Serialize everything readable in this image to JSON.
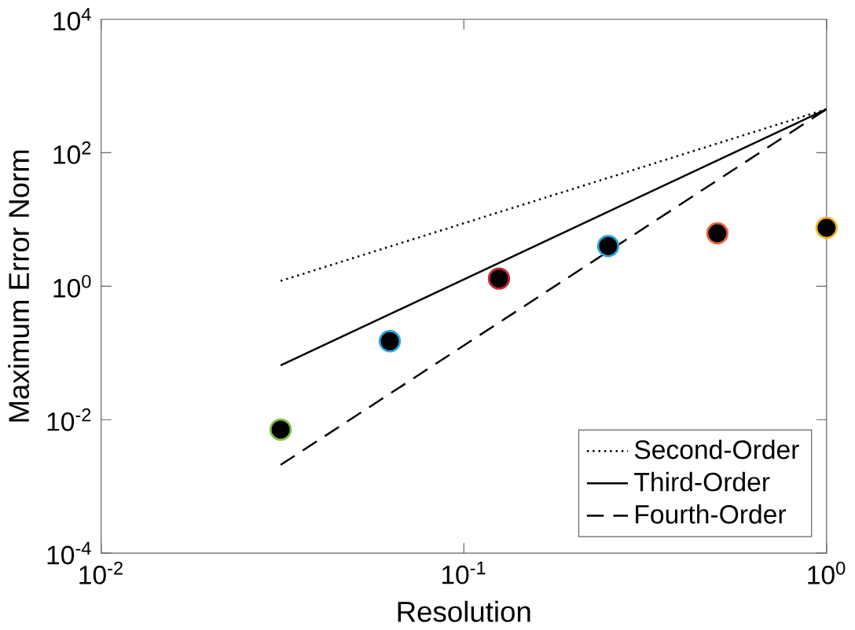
{
  "chart_data": {
    "type": "line",
    "xlabel": "Resolution",
    "ylabel": "Maximum Error Norm",
    "log": "xy",
    "xlim": [
      0.01,
      1
    ],
    "ylim": [
      0.0001,
      10000
    ],
    "xticks": [
      {
        "value": 0.01,
        "label": "10$^{-2}$"
      },
      {
        "value": 0.1,
        "label": "10$^{-1}$"
      },
      {
        "value": 1,
        "label": "10$^{0}$"
      }
    ],
    "yticks": [
      {
        "value": 0.0001,
        "label": "10$^{-4}$"
      },
      {
        "value": 0.01,
        "label": "10$^{-2}$"
      },
      {
        "value": 1,
        "label": "10$^{0}$"
      },
      {
        "value": 100,
        "label": "10$^{2}$"
      },
      {
        "value": 10000,
        "label": "10$^{4}$"
      }
    ],
    "grid": false,
    "legend": "bottom right",
    "series": [
      {
        "type": "scatter",
        "marker": "circle",
        "color": "#000000",
        "colors": [
          "#7ac142",
          "#2aa6de",
          "#c8283c",
          "#2aa6de",
          "#e8643c",
          "#f0b428"
        ],
        "x": [
          0.03125,
          0.0625,
          0.125,
          0.25,
          0.5,
          1
        ],
        "values": [
          0.0071,
          0.15,
          1.3,
          4,
          6.2,
          7.5
        ]
      },
      {
        "name": "Second-Order",
        "color": "#000000",
        "line_style": "dotted",
        "x": [
          0.03125,
          1
        ],
        "values": [
          1.2,
          450
        ]
      },
      {
        "name": "Third-Order",
        "color": "#000000",
        "line_style": "solid",
        "x": [
          0.03125,
          1
        ],
        "values": [
          0.065,
          450
        ]
      },
      {
        "name": "Fourth-Order",
        "color": "#000000",
        "line_style": "dashed",
        "x": [
          0.03125,
          1
        ],
        "values": [
          0.0021,
          450
        ]
      }
    ]
  }
}
